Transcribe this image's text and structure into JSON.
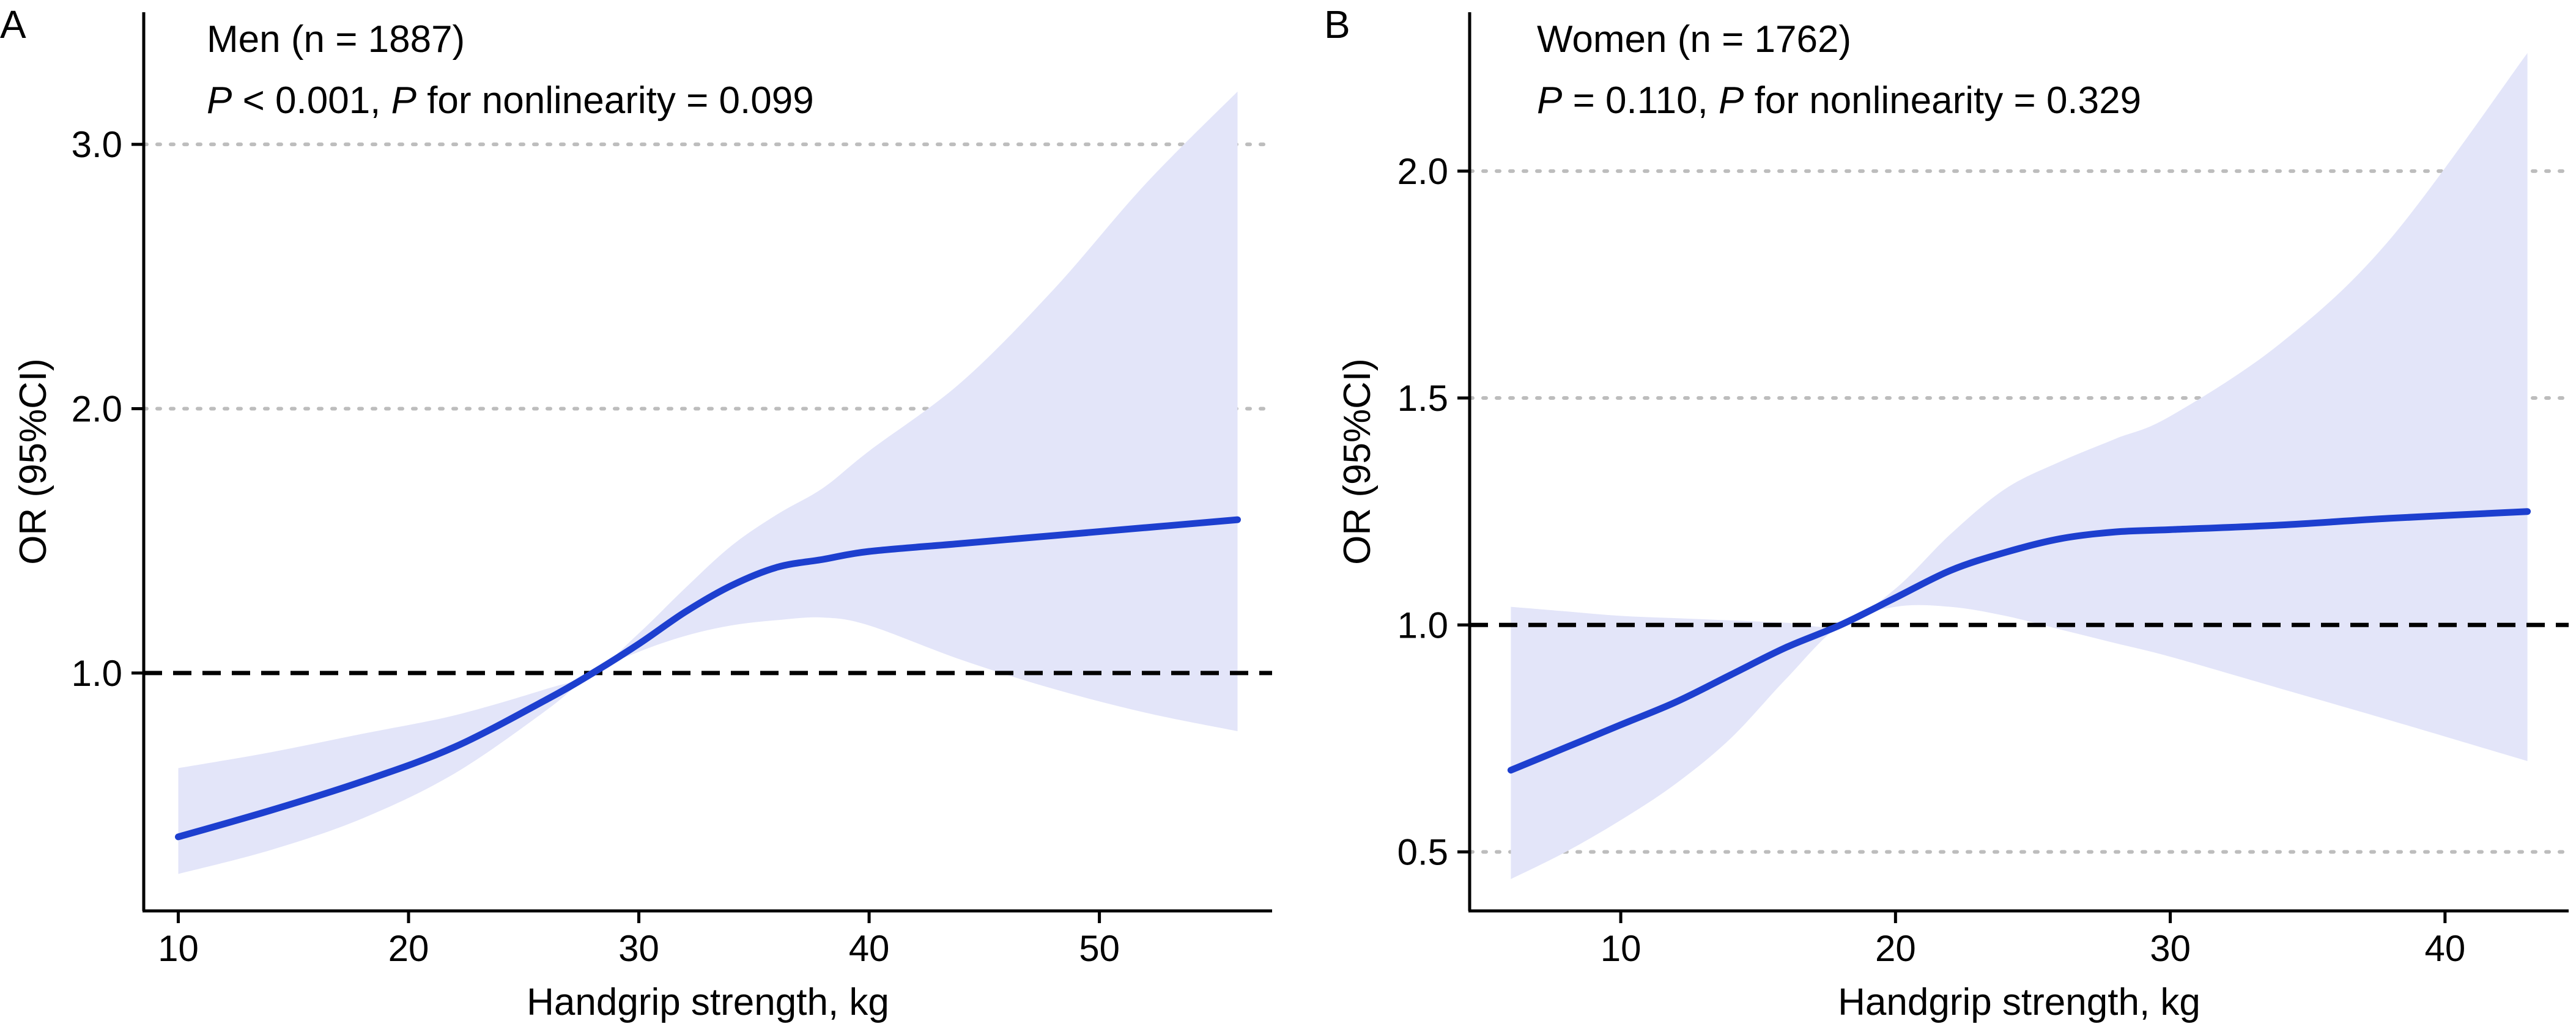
{
  "chart_data": [
    {
      "panel_label": "A",
      "type": "line",
      "title": "Men (n = 1887)",
      "annotation": {
        "p1_italic": "P",
        "p1_text": " < 0.001, ",
        "p2_italic": "P",
        "p2_text": " for nonlinearity = 0.099"
      },
      "xlabel": "Handgrip strength, kg",
      "ylabel": "OR (95%CI)",
      "xlim": [
        8.5,
        57.5
      ],
      "ylim": [
        0.1,
        3.5
      ],
      "xticks": [
        10,
        20,
        30,
        40,
        50
      ],
      "xtick_labels": [
        "10",
        "20",
        "30",
        "40",
        "50"
      ],
      "yticks": [
        1.0,
        2.0,
        3.0
      ],
      "ytick_labels": [
        "1.0",
        "2.0",
        "3.0"
      ],
      "dotted_reference_lines": [
        2.0,
        3.0
      ],
      "dashed_reference_line": 1.0,
      "series": [
        {
          "name": "OR",
          "x": [
            10,
            14,
            18,
            22,
            26,
            28,
            30,
            32,
            34,
            36,
            38,
            40,
            44,
            48,
            52,
            56
          ],
          "y": [
            0.38,
            0.48,
            0.59,
            0.72,
            0.9,
            1.0,
            1.11,
            1.23,
            1.33,
            1.4,
            1.43,
            1.46,
            1.49,
            1.52,
            1.55,
            1.58
          ]
        },
        {
          "name": "Lower 95% CI",
          "x": [
            10,
            14,
            18,
            22,
            26,
            28,
            30,
            32,
            34,
            36,
            38,
            40,
            44,
            48,
            52,
            56
          ],
          "y": [
            0.24,
            0.33,
            0.45,
            0.62,
            0.86,
            1.0,
            1.08,
            1.14,
            1.18,
            1.2,
            1.21,
            1.18,
            1.05,
            0.94,
            0.85,
            0.78
          ]
        },
        {
          "name": "Upper 95% CI",
          "x": [
            10,
            14,
            18,
            22,
            26,
            28,
            30,
            32,
            34,
            36,
            38,
            40,
            44,
            48,
            52,
            56
          ],
          "y": [
            0.64,
            0.7,
            0.77,
            0.84,
            0.94,
            1.0,
            1.15,
            1.32,
            1.48,
            1.6,
            1.7,
            1.84,
            2.1,
            2.45,
            2.85,
            3.2
          ]
        }
      ]
    },
    {
      "panel_label": "B",
      "type": "line",
      "title": "Women (n = 1762)",
      "annotation": {
        "p1_italic": "P",
        "p1_text": " = 0.110, ",
        "p2_italic": "P",
        "p2_text": " for nonlinearity = 0.329"
      },
      "xlabel": "Handgrip strength, kg",
      "ylabel": "OR (95%CI)",
      "xlim": [
        4.5,
        44.5
      ],
      "ylim": [
        0.37,
        2.35
      ],
      "xticks": [
        10,
        20,
        30,
        40
      ],
      "xtick_labels": [
        "10",
        "20",
        "30",
        "40"
      ],
      "yticks": [
        0.5,
        1.0,
        1.5,
        2.0
      ],
      "ytick_labels": [
        "0.5",
        "1.0",
        "1.5",
        "2.0"
      ],
      "dotted_reference_lines": [
        0.5,
        1.5,
        2.0
      ],
      "dashed_reference_line": 1.0,
      "series": [
        {
          "name": "OR",
          "x": [
            6,
            8,
            10,
            12,
            14,
            16,
            18,
            20,
            22,
            24,
            26,
            28,
            30,
            34,
            38,
            43
          ],
          "y": [
            0.68,
            0.73,
            0.78,
            0.83,
            0.89,
            0.95,
            1.0,
            1.06,
            1.12,
            1.16,
            1.19,
            1.205,
            1.21,
            1.22,
            1.235,
            1.25
          ]
        },
        {
          "name": "Lower 95% CI",
          "x": [
            6,
            8,
            10,
            12,
            14,
            16,
            18,
            20,
            22,
            24,
            26,
            28,
            30,
            34,
            38,
            43
          ],
          "y": [
            0.44,
            0.5,
            0.57,
            0.65,
            0.75,
            0.88,
            1.0,
            1.04,
            1.04,
            1.02,
            0.99,
            0.96,
            0.93,
            0.86,
            0.79,
            0.7
          ]
        },
        {
          "name": "Upper 95% CI",
          "x": [
            6,
            8,
            10,
            12,
            14,
            16,
            18,
            20,
            22,
            24,
            26,
            28,
            30,
            34,
            38,
            43
          ],
          "y": [
            1.04,
            1.03,
            1.02,
            1.015,
            1.01,
            1.005,
            1.0,
            1.08,
            1.2,
            1.3,
            1.36,
            1.41,
            1.46,
            1.62,
            1.85,
            2.26
          ]
        }
      ]
    }
  ],
  "colors": {
    "line": "#1d3fcf",
    "band": "#e3e5f9",
    "dotted": "#bdbdbd",
    "dashed": "#000000",
    "axis": "#000000"
  }
}
